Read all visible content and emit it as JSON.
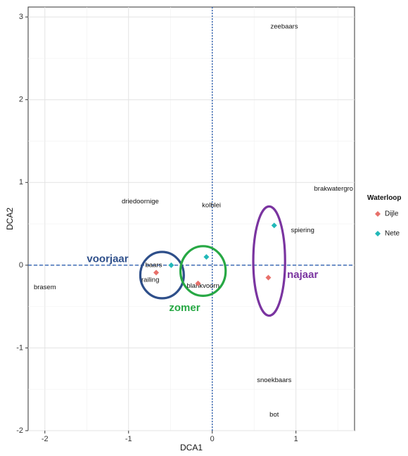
{
  "chart_data": {
    "type": "scatter",
    "title": "",
    "xlabel": "DCA1",
    "ylabel": "DCA2",
    "xlim": [
      -2.2,
      1.7
    ],
    "ylim": [
      -2.0,
      3.12
    ],
    "xticks": [
      -2,
      -1,
      0,
      1
    ],
    "yticks": [
      -2,
      -1,
      0,
      1,
      2,
      3
    ],
    "grid": true,
    "legend": {
      "title": "Waterloop",
      "placement": "right",
      "entries": [
        {
          "name": "Dijle",
          "color": "#E8706A"
        },
        {
          "name": "Nete",
          "color": "#22B8B8"
        }
      ]
    },
    "series": [
      {
        "name": "Dijle",
        "color": "#E8706A",
        "marker": "diamond",
        "points": [
          {
            "x": -0.67,
            "y": -0.09
          },
          {
            "x": -0.17,
            "y": -0.22
          },
          {
            "x": 0.67,
            "y": -0.15
          }
        ]
      },
      {
        "name": "Nete",
        "color": "#22B8B8",
        "marker": "diamond",
        "points": [
          {
            "x": -0.49,
            "y": 0.0
          },
          {
            "x": -0.07,
            "y": 0.1
          },
          {
            "x": 0.74,
            "y": 0.48
          }
        ]
      }
    ],
    "species_labels": [
      {
        "text": "zeebaars",
        "x": 0.86,
        "y": 2.88
      },
      {
        "text": "brakwatergro",
        "x": 1.45,
        "y": 0.92
      },
      {
        "text": "driedoornige",
        "x": -0.86,
        "y": 0.77
      },
      {
        "text": "kolblei",
        "x": -0.01,
        "y": 0.72
      },
      {
        "text": "spiering",
        "x": 1.08,
        "y": 0.42
      },
      {
        "text": "baars",
        "x": -0.7,
        "y": 0.0
      },
      {
        "text": "railing",
        "x": -0.74,
        "y": -0.18
      },
      {
        "text": "blankvoorn",
        "x": -0.11,
        "y": -0.25
      },
      {
        "text": "brasem",
        "x": -2.0,
        "y": -0.27
      },
      {
        "text": "snoekbaars",
        "x": 0.74,
        "y": -1.39
      },
      {
        "text": "bot",
        "x": 0.74,
        "y": -1.81
      }
    ],
    "reference_lines": [
      {
        "axis": "x",
        "value": 0,
        "color": "#2E5FB0",
        "style": "dotted"
      },
      {
        "axis": "y",
        "value": 0,
        "color": "#2E5FB0",
        "style": "dashed"
      }
    ],
    "season_groups": [
      {
        "label": "voorjaar",
        "color": "#2E4F8A",
        "cx": -0.6,
        "cy": -0.12,
        "rx": 0.26,
        "ry": 0.28,
        "label_x": -1.25,
        "label_y": 0.07
      },
      {
        "label": "zomer",
        "color": "#27A844",
        "cx": -0.11,
        "cy": -0.07,
        "rx": 0.27,
        "ry": 0.3,
        "label_x": -0.33,
        "label_y": -0.52
      },
      {
        "label": "najaar",
        "color": "#7A34A0",
        "cx": 0.68,
        "cy": 0.05,
        "rx": 0.19,
        "ry": 0.66,
        "label_x": 1.08,
        "label_y": -0.12
      }
    ]
  }
}
